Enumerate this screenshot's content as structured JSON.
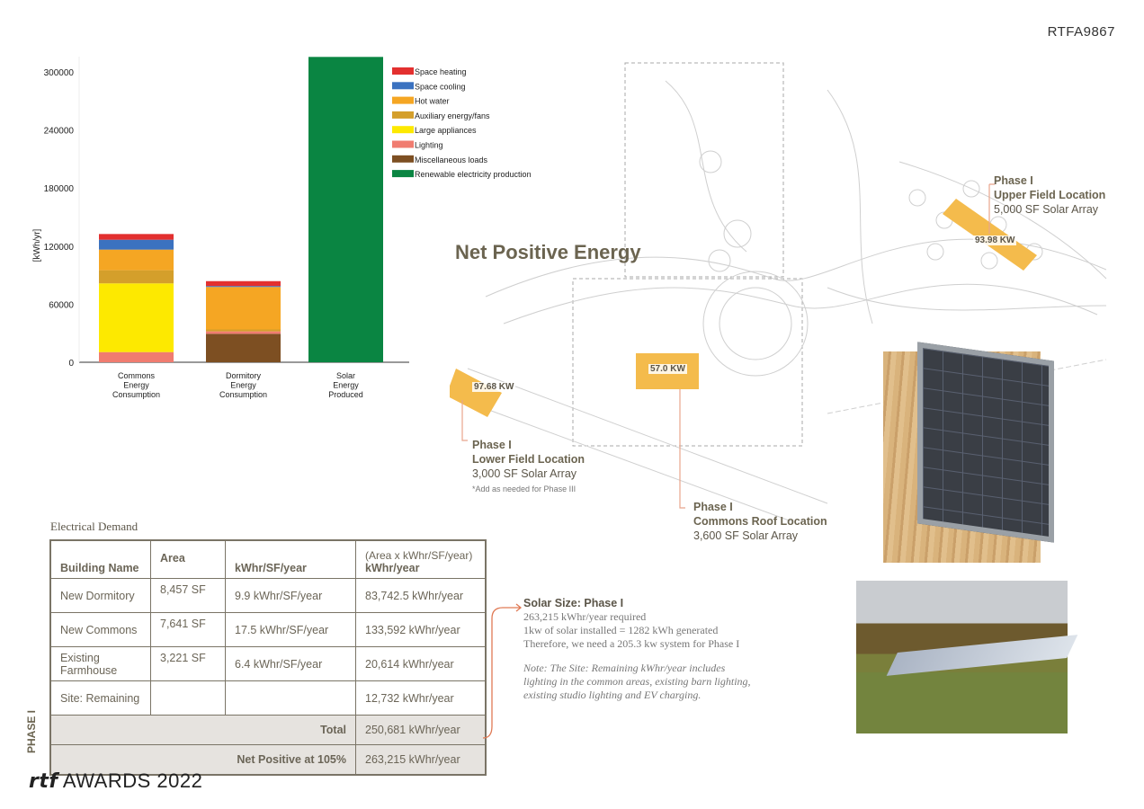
{
  "board_code": "RTFA9867",
  "title": "Net Positive Energy",
  "chart_data": {
    "type": "bar",
    "stacked": true,
    "ylabel": "[kWh/yr]",
    "ylim": [
      0,
      316000
    ],
    "yticks": [
      0,
      60000,
      120000,
      180000,
      240000,
      300000
    ],
    "grid": false,
    "legend_position": "right",
    "categories": [
      "Commons Energy Consumption",
      "Dormitory Energy Consumption",
      "Solar Energy Produced"
    ],
    "category_lines": [
      [
        "Commons",
        "Energy",
        "Consumption"
      ],
      [
        "Dormitory",
        "Energy",
        "Consumption"
      ],
      [
        "Solar",
        "Energy",
        "Produced"
      ]
    ],
    "series": [
      {
        "name": "Miscellaneous loads",
        "color": "#7d4f22",
        "values": [
          0,
          29400,
          0
        ]
      },
      {
        "name": "Lighting",
        "color": "#f07c70",
        "values": [
          10500,
          2500,
          0
        ]
      },
      {
        "name": "Large appliances",
        "color": "#fde900",
        "values": [
          71000,
          0,
          0
        ]
      },
      {
        "name": "Auxiliary energy/fans",
        "color": "#d49f2b",
        "values": [
          13600,
          2000,
          0
        ]
      },
      {
        "name": "Hot water",
        "color": "#f5a623",
        "values": [
          21300,
          43900,
          0
        ]
      },
      {
        "name": "Space cooling",
        "color": "#3b72c0",
        "values": [
          10200,
          1000,
          0
        ]
      },
      {
        "name": "Space heating",
        "color": "#e3302f",
        "values": [
          5900,
          5000,
          0
        ]
      },
      {
        "name": "Renewable electricity production",
        "color": "#0a8542",
        "values": [
          0,
          0,
          315500
        ]
      }
    ],
    "legend_order": [
      "Space heating",
      "Space cooling",
      "Hot water",
      "Auxiliary energy/fans",
      "Large appliances",
      "Lighting",
      "Miscellaneous loads",
      "Renewable electricity production"
    ]
  },
  "map": {
    "accent": "#f4bb4c",
    "arrays": [
      {
        "kw": "93.98 KW",
        "phase": "Phase I",
        "location": "Upper Field Location",
        "size": "5,000 SF Solar Array"
      },
      {
        "kw": "57.0 KW",
        "phase": "Phase I",
        "location": "Commons Roof Location",
        "size": "3,600 SF Solar Array"
      },
      {
        "kw": "97.68 KW",
        "phase": "Phase I",
        "location": "Lower Field Location",
        "size": "3,000 SF Solar Array",
        "note": "*Add as needed for Phase III"
      }
    ]
  },
  "electrical_demand": {
    "title": "Electrical Demand",
    "side_label": "PHASE I",
    "headers": [
      "Building Name",
      "Area",
      "kWhr/SF/year",
      "kWhr/year"
    ],
    "header_sub": "(Area x kWhr/SF/year)",
    "rows": [
      [
        "New Dormitory",
        "8,457 SF",
        "9.9 kWhr/SF/year",
        "83,742.5 kWhr/year"
      ],
      [
        "New Commons",
        "7,641 SF",
        "17.5 kWhr/SF/year",
        "133,592 kWhr/year"
      ],
      [
        "Existing Farmhouse",
        "3,221 SF",
        "6.4 kWhr/SF/year",
        "20,614 kWhr/year"
      ],
      [
        "Site: Remaining",
        "",
        "",
        "12,732 kWhr/year"
      ]
    ],
    "total_label": "Total",
    "total_value": "250,681 kWhr/year",
    "net_label": "Net Positive at 105%",
    "net_value": "263,215 kWhr/year"
  },
  "solar_size": {
    "heading": "Solar Size: Phase I",
    "lines": [
      "263,215 kWhr/year required",
      "1kw of solar installed = 1282 kWh generated",
      "Therefore, we need a 205.3 kw system for Phase I"
    ],
    "note": "Note: The Site: Remaining kWhr/year includes lighting in the common areas, existing barn lighting, existing studio lighting and EV charging."
  },
  "footer": {
    "logo": "rtf",
    "text": "AWARDS 2022"
  }
}
